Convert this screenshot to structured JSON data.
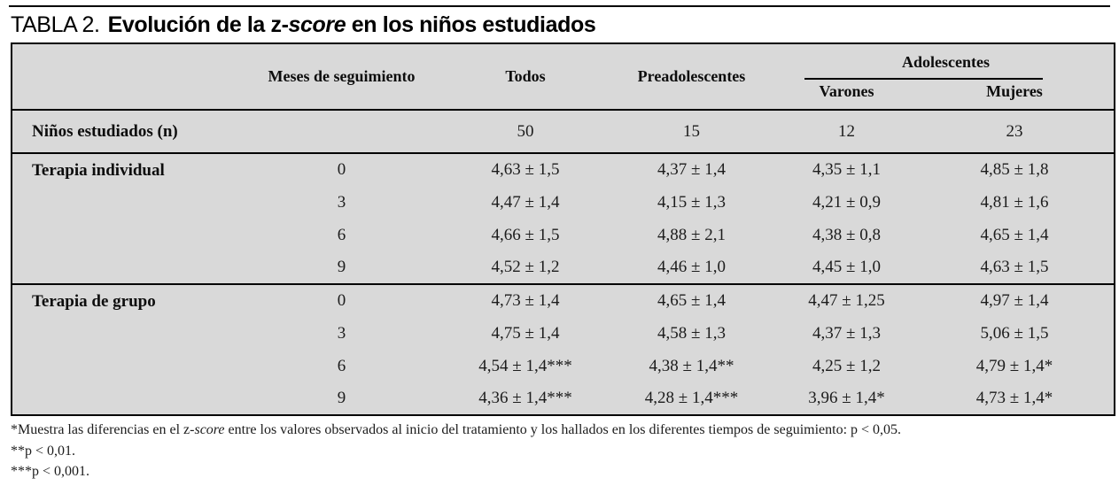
{
  "title": {
    "label": "TABLA 2.",
    "caption_part1": "Evolución de la z-",
    "caption_italic": "score",
    "caption_part2": " en los niños estudiados"
  },
  "colors": {
    "table_background": "#d9d9d9",
    "rule": "#000000",
    "text": "#111111"
  },
  "table": {
    "header": {
      "meses": "Meses de seguimiento",
      "todos": "Todos",
      "preadolescentes": "Preadolescentes",
      "adolescentes": "Adolescentes",
      "varones": "Varones",
      "mujeres": "Mujeres"
    },
    "n_row": {
      "label": "Niños estudiados (n)",
      "todos": "50",
      "preadolescentes": "15",
      "varones": "12",
      "mujeres": "23"
    },
    "sections": [
      {
        "label": "Terapia individual",
        "rows": [
          {
            "meses": "0",
            "todos": "4,63 ± 1,5",
            "preadolescentes": "4,37 ± 1,4",
            "varones": "4,35 ± 1,1",
            "mujeres": "4,85 ± 1,8"
          },
          {
            "meses": "3",
            "todos": "4,47 ± 1,4",
            "preadolescentes": "4,15 ± 1,3",
            "varones": "4,21 ± 0,9",
            "mujeres": "4,81 ± 1,6"
          },
          {
            "meses": "6",
            "todos": "4,66 ± 1,5",
            "preadolescentes": "4,88 ± 2,1",
            "varones": "4,38 ± 0,8",
            "mujeres": "4,65 ± 1,4"
          },
          {
            "meses": "9",
            "todos": "4,52 ± 1,2",
            "preadolescentes": "4,46 ± 1,0",
            "varones": "4,45 ± 1,0",
            "mujeres": "4,63 ± 1,5"
          }
        ]
      },
      {
        "label": "Terapia de grupo",
        "rows": [
          {
            "meses": "0",
            "todos": "4,73 ± 1,4",
            "preadolescentes": "4,65 ± 1,4",
            "varones": "4,47 ± 1,25",
            "mujeres": "4,97 ± 1,4"
          },
          {
            "meses": "3",
            "todos": "4,75 ± 1,4",
            "preadolescentes": "4,58 ± 1,3",
            "varones": "4,37 ± 1,3",
            "mujeres": "5,06 ± 1,5"
          },
          {
            "meses": "6",
            "todos": "4,54 ± 1,4***",
            "preadolescentes": "4,38 ± 1,4**",
            "varones": "4,25 ± 1,2",
            "mujeres": "4,79 ± 1,4*"
          },
          {
            "meses": "9",
            "todos": "4,36 ± 1,4***",
            "preadolescentes": "4,28 ± 1,4***",
            "varones": "3,96 ± 1,4*",
            "mujeres": "4,73 ± 1,4*"
          }
        ]
      }
    ]
  },
  "footnotes": {
    "fn1_part1": "*Muestra las diferencias en el z-",
    "fn1_italic": "score",
    "fn1_part2": " entre los valores observados al inicio del tratamiento y los hallados en los diferentes tiempos de seguimiento: p < 0,05.",
    "fn2": "**p < 0,01.",
    "fn3": "***p < 0,001."
  },
  "chart_data": {
    "type": "table",
    "title": "TABLA 2. Evolución de la z-score en los niños estudiados",
    "columns": [
      "",
      "Meses de seguimiento",
      "Todos",
      "Preadolescentes",
      "Adolescentes Varones",
      "Adolescentes Mujeres"
    ],
    "rows": [
      [
        "Niños estudiados (n)",
        "",
        "50",
        "15",
        "12",
        "23"
      ],
      [
        "Terapia individual",
        "0",
        "4,63 ± 1,5",
        "4,37 ± 1,4",
        "4,35 ± 1,1",
        "4,85 ± 1,8"
      ],
      [
        "",
        "3",
        "4,47 ± 1,4",
        "4,15 ± 1,3",
        "4,21 ± 0,9",
        "4,81 ± 1,6"
      ],
      [
        "",
        "6",
        "4,66 ± 1,5",
        "4,88 ± 2,1",
        "4,38 ± 0,8",
        "4,65 ± 1,4"
      ],
      [
        "",
        "9",
        "4,52 ± 1,2",
        "4,46 ± 1,0",
        "4,45 ± 1,0",
        "4,63 ± 1,5"
      ],
      [
        "Terapia de grupo",
        "0",
        "4,73 ± 1,4",
        "4,65 ± 1,4",
        "4,47 ± 1,25",
        "4,97 ± 1,4"
      ],
      [
        "",
        "3",
        "4,75 ± 1,4",
        "4,58 ± 1,3",
        "4,37 ± 1,3",
        "5,06 ± 1,5"
      ],
      [
        "",
        "6",
        "4,54 ± 1,4***",
        "4,38 ± 1,4**",
        "4,25 ± 1,2",
        "4,79 ± 1,4*"
      ],
      [
        "",
        "9",
        "4,36 ± 1,4***",
        "4,28 ± 1,4***",
        "3,96 ± 1,4*",
        "4,73 ± 1,4*"
      ]
    ]
  }
}
